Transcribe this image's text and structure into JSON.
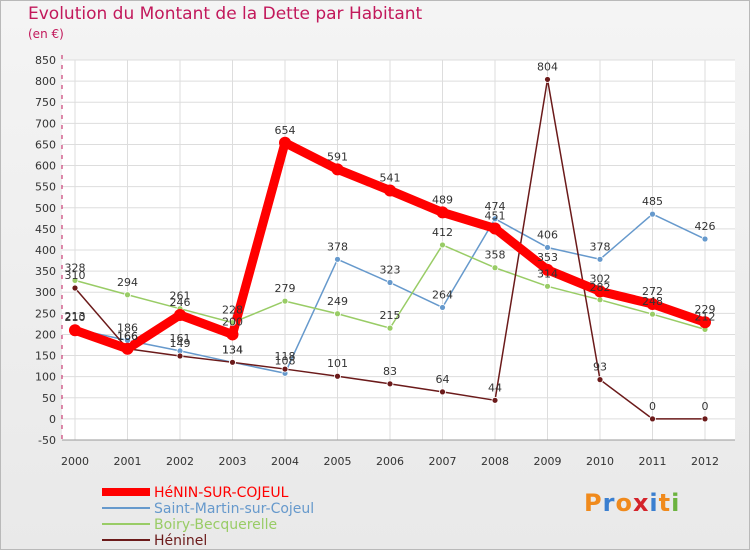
{
  "chart_data": {
    "type": "line",
    "title": "Evolution du Montant de la Dette par Habitant",
    "subtitle": "(en €)",
    "x": [
      "2000",
      "2001",
      "2002",
      "2003",
      "2004",
      "2005",
      "2006",
      "2007",
      "2008",
      "2009",
      "2010",
      "2011",
      "2012"
    ],
    "yticks": [
      -50,
      0,
      50,
      100,
      150,
      200,
      250,
      300,
      350,
      400,
      450,
      500,
      550,
      600,
      650,
      700,
      750,
      800,
      850
    ],
    "ylim": [
      -50,
      850
    ],
    "grid": true,
    "legend_position": "bottom-left",
    "series": [
      {
        "name": "HéNIN-SUR-COJEUL",
        "color": "#ff0000",
        "values": [
          210,
          166,
          246,
          200,
          654,
          591,
          541,
          489,
          451,
          353,
          302,
          272,
          229
        ]
      },
      {
        "name": "Saint-Martin-sur-Cojeul",
        "color": "#6699cc",
        "values": [
          213,
          186,
          161,
          134,
          108,
          378,
          323,
          264,
          474,
          406,
          378,
          485,
          426
        ]
      },
      {
        "name": "Boiry-Becquerelle",
        "color": "#99cc66",
        "values": [
          328,
          294,
          261,
          228,
          279,
          249,
          215,
          412,
          358,
          314,
          282,
          248,
          212
        ]
      },
      {
        "name": "Héninel",
        "color": "#6b1a1a",
        "values": [
          310,
          166,
          149,
          134,
          118,
          101,
          83,
          64,
          44,
          804,
          93,
          0,
          0
        ]
      }
    ]
  },
  "logo": {
    "letters": [
      "P",
      "r",
      "o",
      "x",
      "i",
      "t",
      "i"
    ],
    "colors": [
      "#f08a1c",
      "#3a7fd0",
      "#f08a1c",
      "#d4232a",
      "#3a7fd0",
      "#f08a1c",
      "#6cb33f"
    ]
  }
}
